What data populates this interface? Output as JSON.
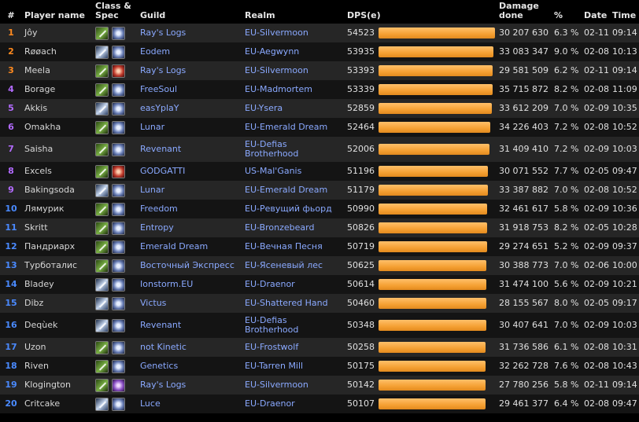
{
  "headers": {
    "rank": "#",
    "player": "Player name",
    "class_spec": "Class & Spec",
    "guild": "Guild",
    "realm": "Realm",
    "dps": "DPS(e)",
    "damage": "Damage done",
    "pct": "%",
    "date": "Date",
    "time": "Time"
  },
  "rank_colors": {
    "1": "#ff8a1f",
    "2": "#ff8a1f",
    "3": "#ff8a1f",
    "4": "#b36bff",
    "5": "#b36bff",
    "6": "#b36bff",
    "7": "#b36bff",
    "8": "#b36bff",
    "9": "#b36bff",
    "10": "#4a8aff",
    "11": "#4a8aff",
    "12": "#4a8aff",
    "13": "#4a8aff",
    "14": "#4a8aff",
    "15": "#4a8aff",
    "16": "#4a8aff",
    "17": "#4a8aff",
    "18": "#4a8aff",
    "19": "#4a8aff",
    "20": "#4a8aff"
  },
  "rows": [
    {
      "rank": "1",
      "name": "Jôy",
      "class_icon": "hunter-class-icon",
      "spec_icon": "frost-spec-icon",
      "guild": "Ray's Logs",
      "realm": "EU-Silvermoon",
      "dps": "54523",
      "dps_value": 54523,
      "damage": "30 207 630",
      "pct": "6.3 %",
      "date": "02-11",
      "time": "09:14"
    },
    {
      "rank": "2",
      "name": "Røøach",
      "class_icon": "mage-class-icon",
      "spec_icon": "frost-spec-icon",
      "guild": "Eodem",
      "realm": "EU-Aegwynn",
      "dps": "53935",
      "dps_value": 53935,
      "damage": "33 083 347",
      "pct": "9.0 %",
      "date": "02-08",
      "time": "10:13"
    },
    {
      "rank": "3",
      "name": "Meela",
      "class_icon": "hunter-class-icon",
      "spec_icon": "fire-spec-icon",
      "guild": "Ray's Logs",
      "realm": "EU-Silvermoon",
      "dps": "53393",
      "dps_value": 53393,
      "damage": "29 581 509",
      "pct": "6.2 %",
      "date": "02-11",
      "time": "09:14"
    },
    {
      "rank": "4",
      "name": "Borage",
      "class_icon": "hunter-class-icon",
      "spec_icon": "frost-spec-icon",
      "guild": "FreeSoul",
      "realm": "EU-Madmortem",
      "dps": "53339",
      "dps_value": 53339,
      "damage": "35 715 872",
      "pct": "8.2 %",
      "date": "02-08",
      "time": "11:09"
    },
    {
      "rank": "5",
      "name": "Akkis",
      "class_icon": "mage-class-icon",
      "spec_icon": "frost-spec-icon",
      "guild": "easYplaY",
      "realm": "EU-Ysera",
      "dps": "52859",
      "dps_value": 52859,
      "damage": "33 612 209",
      "pct": "7.0 %",
      "date": "02-09",
      "time": "10:35"
    },
    {
      "rank": "6",
      "name": "Omakha",
      "class_icon": "hunter-class-icon",
      "spec_icon": "frost-spec-icon",
      "guild": "Lunar",
      "realm": "EU-Emerald Dream",
      "dps": "52464",
      "dps_value": 52464,
      "damage": "34 226 403",
      "pct": "7.2 %",
      "date": "02-08",
      "time": "10:52"
    },
    {
      "rank": "7",
      "name": "Saisha",
      "class_icon": "hunter-class-icon",
      "spec_icon": "frost-spec-icon",
      "guild": "Revenant",
      "realm": "EU-Defias Brotherhood",
      "dps": "52006",
      "dps_value": 52006,
      "damage": "31 409 410",
      "pct": "7.2 %",
      "date": "02-09",
      "time": "10:03"
    },
    {
      "rank": "8",
      "name": "Excels",
      "class_icon": "hunter-class-icon",
      "spec_icon": "fire-spec-icon",
      "guild": "GODGATTI",
      "realm": "US-Mal'Ganis",
      "dps": "51196",
      "dps_value": 51196,
      "damage": "30 071 552",
      "pct": "7.7 %",
      "date": "02-05",
      "time": "09:47"
    },
    {
      "rank": "9",
      "name": "Bakingsoda",
      "class_icon": "mage-class-icon",
      "spec_icon": "frost-spec-icon",
      "guild": "Lunar",
      "realm": "EU-Emerald Dream",
      "dps": "51179",
      "dps_value": 51179,
      "damage": "33 387 882",
      "pct": "7.0 %",
      "date": "02-08",
      "time": "10:52"
    },
    {
      "rank": "10",
      "name": "Лямурик",
      "class_icon": "hunter-class-icon",
      "spec_icon": "frost-spec-icon",
      "guild": "Freedom",
      "realm": "EU-Ревущий фьорд",
      "dps": "50990",
      "dps_value": 50990,
      "damage": "32 461 617",
      "pct": "5.8 %",
      "date": "02-09",
      "time": "10:36"
    },
    {
      "rank": "11",
      "name": "Skritt",
      "class_icon": "hunter-class-icon",
      "spec_icon": "frost-spec-icon",
      "guild": "Entropy",
      "realm": "EU-Bronzebeard",
      "dps": "50826",
      "dps_value": 50826,
      "damage": "31 918 753",
      "pct": "8.2 %",
      "date": "02-05",
      "time": "10:28"
    },
    {
      "rank": "12",
      "name": "Пандриарх",
      "class_icon": "hunter-class-icon",
      "spec_icon": "frost-spec-icon",
      "guild": "Emerald Dream",
      "realm": "EU-Вечная Песня",
      "dps": "50719",
      "dps_value": 50719,
      "damage": "29 274 651",
      "pct": "5.2 %",
      "date": "02-09",
      "time": "09:37"
    },
    {
      "rank": "13",
      "name": "Турботалис",
      "class_icon": "hunter-class-icon",
      "spec_icon": "frost-spec-icon",
      "guild": "Восточный Экспресс",
      "realm": "EU-Ясеневый лес",
      "dps": "50625",
      "dps_value": 50625,
      "damage": "30 388 773",
      "pct": "7.0 %",
      "date": "02-06",
      "time": "10:00"
    },
    {
      "rank": "14",
      "name": "Bladey",
      "class_icon": "mage-class-icon",
      "spec_icon": "frost-spec-icon",
      "guild": "Ionstorm.EU",
      "realm": "EU-Draenor",
      "dps": "50614",
      "dps_value": 50614,
      "damage": "31 474 100",
      "pct": "5.6 %",
      "date": "02-09",
      "time": "10:21"
    },
    {
      "rank": "15",
      "name": "Dibz",
      "class_icon": "mage-class-icon",
      "spec_icon": "frost-spec-icon",
      "guild": "Victus",
      "realm": "EU-Shattered Hand",
      "dps": "50460",
      "dps_value": 50460,
      "damage": "28 155 567",
      "pct": "8.0 %",
      "date": "02-05",
      "time": "09:17"
    },
    {
      "rank": "16",
      "name": "Deqùek",
      "class_icon": "mage-class-icon",
      "spec_icon": "frost-spec-icon",
      "guild": "Revenant",
      "realm": "EU-Defias Brotherhood",
      "dps": "50348",
      "dps_value": 50348,
      "damage": "30 407 641",
      "pct": "7.0 %",
      "date": "02-09",
      "time": "10:03"
    },
    {
      "rank": "17",
      "name": "Uzon",
      "class_icon": "hunter-class-icon",
      "spec_icon": "frost-spec-icon",
      "guild": "not Kinetic",
      "realm": "EU-Frostwolf",
      "dps": "50258",
      "dps_value": 50258,
      "damage": "31 736 586",
      "pct": "6.1 %",
      "date": "02-08",
      "time": "10:31"
    },
    {
      "rank": "18",
      "name": "Riven",
      "class_icon": "hunter-class-icon",
      "spec_icon": "frost-spec-icon",
      "guild": "Genetics",
      "realm": "EU-Tarren Mill",
      "dps": "50175",
      "dps_value": 50175,
      "damage": "32 262 728",
      "pct": "7.6 %",
      "date": "02-08",
      "time": "10:43"
    },
    {
      "rank": "19",
      "name": "Klogington",
      "class_icon": "hunter-class-icon",
      "spec_icon": "arcane-spec-icon",
      "guild": "Ray's Logs",
      "realm": "EU-Silvermoon",
      "dps": "50142",
      "dps_value": 50142,
      "damage": "27 780 256",
      "pct": "5.8 %",
      "date": "02-11",
      "time": "09:14"
    },
    {
      "rank": "20",
      "name": "Critcake",
      "class_icon": "mage-class-icon",
      "spec_icon": "frost-spec-icon",
      "guild": "Luce",
      "realm": "EU-Draenor",
      "dps": "50107",
      "dps_value": 50107,
      "damage": "29 461 377",
      "pct": "6.4 %",
      "date": "02-08",
      "time": "09:47"
    }
  ]
}
